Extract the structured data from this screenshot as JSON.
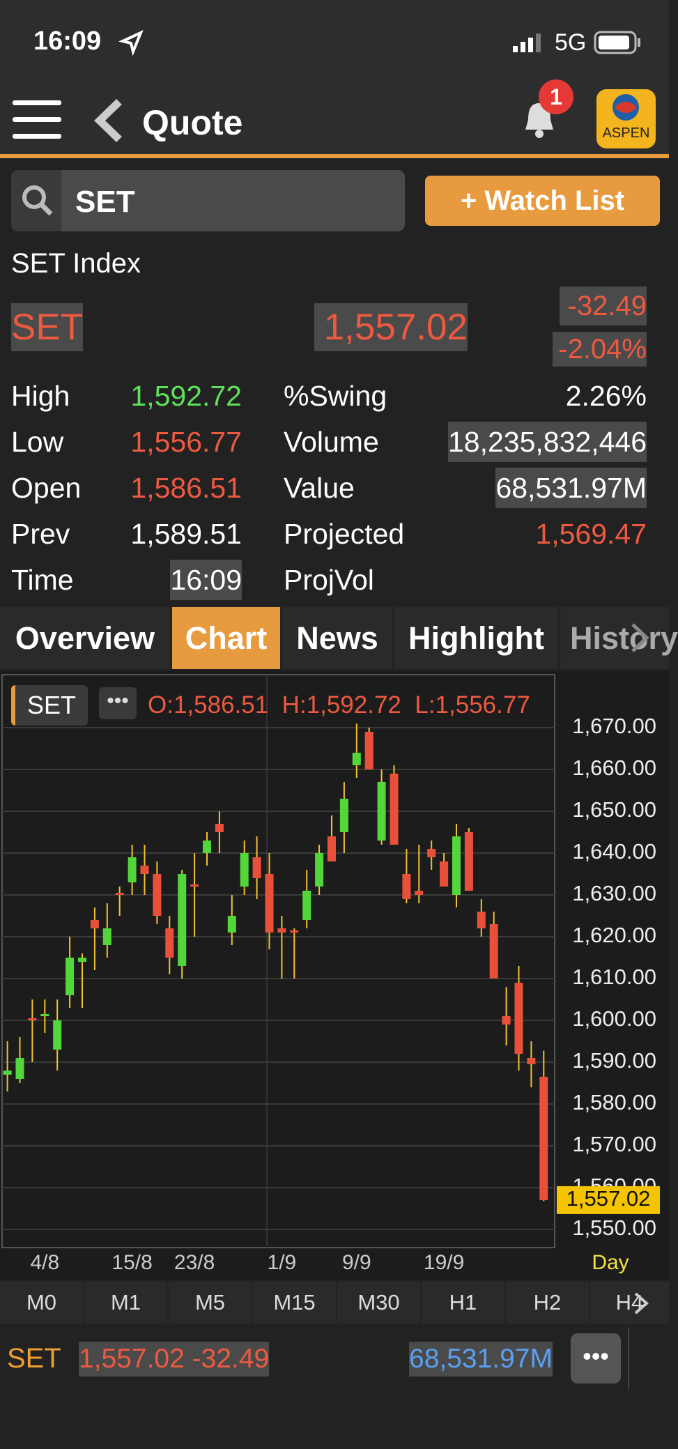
{
  "status_bar": {
    "time": "16:09",
    "network": "5G"
  },
  "nav": {
    "title": "Quote",
    "badge": "1",
    "logo": "ASPEN"
  },
  "search": {
    "query": "SET",
    "watch_button": "+ Watch List"
  },
  "quote": {
    "name": "SET Index",
    "symbol": "SET",
    "last": "1,557.02",
    "change": "-32.49",
    "change_pct": "-2.04%",
    "stats_left": [
      {
        "label": "High",
        "value": "1,592.72"
      },
      {
        "label": "Low",
        "value": "1,556.77"
      },
      {
        "label": "Open",
        "value": "1,586.51"
      },
      {
        "label": "Prev",
        "value": "1,589.51"
      },
      {
        "label": "Time",
        "value": "16:09"
      }
    ],
    "stats_right": [
      {
        "label": "%Swing",
        "value": "2.26%"
      },
      {
        "label": "Volume",
        "value": "18,235,832,446"
      },
      {
        "label": "Value",
        "value": "68,531.97M"
      },
      {
        "label": "Projected",
        "value": "1,569.47"
      },
      {
        "label": "ProjVol"
      }
    ]
  },
  "tabs": [
    "Overview",
    "Chart",
    "News",
    "Highlight",
    "History"
  ],
  "chart_header": {
    "symbol": "SET",
    "open": "O:1,586.51",
    "high": "H:1,592.72",
    "low": "L:1,556.77"
  },
  "chart_data": {
    "type": "candlestick",
    "categories": [
      null,
      null,
      null,
      "4/8",
      null,
      null,
      null,
      null,
      null,
      null,
      "15/8",
      null,
      null,
      null,
      null,
      "23/8",
      null,
      null,
      null,
      null,
      null,
      null,
      "1/9",
      null,
      null,
      null,
      null,
      null,
      "9/9",
      null,
      null,
      null,
      null,
      null,
      null,
      "19/9",
      null,
      null,
      null,
      null,
      null,
      null,
      null,
      null
    ],
    "open": [
      1587,
      1586,
      1600.5,
      1601,
      1593,
      1606,
      1614,
      1624,
      1618,
      1630.5,
      1633,
      1637,
      1635,
      1622,
      1613,
      1632.5,
      1640,
      1647,
      1621,
      1632,
      1639,
      1635,
      1622,
      1621.5,
      1624,
      1632,
      1644,
      1645,
      1661,
      1669,
      1643,
      1659,
      1635,
      1631,
      1641,
      1638,
      1630,
      1645,
      1626,
      1623,
      1601,
      1609,
      1591,
      1586.51
    ],
    "high": [
      1595,
      1596,
      1605,
      1605,
      1605,
      1620,
      1616,
      1627,
      1628,
      1632,
      1642,
      1642,
      1638,
      1625,
      1636,
      1640,
      1645,
      1650,
      1630,
      1643,
      1644,
      1640,
      1625,
      1622,
      1636,
      1642,
      1649,
      1657,
      1671,
      1670,
      1660,
      1661,
      1641,
      1642,
      1643,
      1640,
      1647,
      1646,
      1629,
      1626,
      1608,
      1613,
      1595,
      1592.72
    ],
    "low": [
      1583,
      1585,
      1590,
      1597,
      1588,
      1603,
      1603,
      1612,
      1615,
      1625,
      1630,
      1630,
      1623,
      1611,
      1610,
      1620,
      1637,
      1640,
      1618,
      1630,
      1629,
      1617,
      1610,
      1610,
      1622,
      1630,
      1638,
      1640,
      1658,
      1660,
      1642,
      1642,
      1628,
      1628,
      1636,
      1632,
      1627,
      1631,
      1620,
      1610,
      1594,
      1588,
      1584,
      1556.77
    ],
    "close": [
      1588,
      1591,
      1600,
      1601.5,
      1600,
      1615,
      1615,
      1622,
      1622,
      1630,
      1639,
      1635,
      1625,
      1615,
      1635,
      1632,
      1643,
      1645,
      1625,
      1640,
      1634,
      1621,
      1621,
      1621,
      1631,
      1640,
      1638,
      1653,
      1664,
      1660,
      1657,
      1642,
      1629,
      1630,
      1639,
      1632,
      1644,
      1631,
      1622,
      1610,
      1599,
      1592,
      1589.51,
      1557.02
    ],
    "last_label": "1,557.02",
    "up_color": "#52d63a",
    "down_color": "#e8503a",
    "wick_color": "#f2c230",
    "ylim": [
      1545,
      1681
    ],
    "yticks": [
      {
        "value": 1550,
        "label": "1,550.00"
      },
      {
        "value": 1560,
        "label": "1,560.00"
      },
      {
        "value": 1570,
        "label": "1,570.00"
      },
      {
        "value": 1580,
        "label": "1,580.00"
      },
      {
        "value": 1590,
        "label": "1,590.00"
      },
      {
        "value": 1600,
        "label": "1,600.00"
      },
      {
        "value": 1610,
        "label": "1,610.00"
      },
      {
        "value": 1620,
        "label": "1,620.00"
      },
      {
        "value": 1630,
        "label": "1,630.00"
      },
      {
        "value": 1640,
        "label": "1,640.00"
      },
      {
        "value": 1650,
        "label": "1,650.00"
      },
      {
        "value": 1660,
        "label": "1,660.00"
      },
      {
        "value": 1670,
        "label": "1,670.00"
      }
    ],
    "grid": true,
    "period": "Day"
  },
  "intervals": [
    "M0",
    "M1",
    "M5",
    "M15",
    "M30",
    "H1",
    "H2",
    "H4"
  ],
  "ticker": {
    "symbol": "SET",
    "price_change": "1,557.02 -32.49",
    "value": "68,531.97M"
  }
}
